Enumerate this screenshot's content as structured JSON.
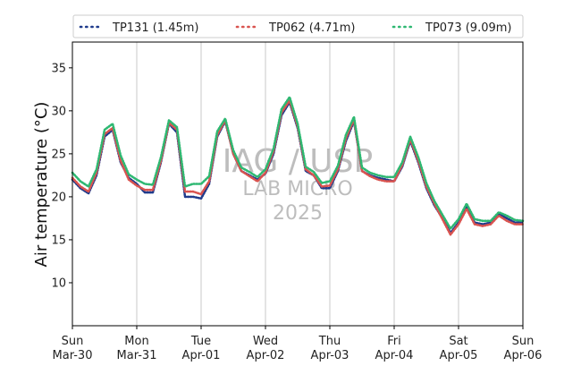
{
  "chart_data": {
    "type": "line",
    "xlabel": "",
    "ylabel": "Air temperature (°C)",
    "ylim": [
      5,
      38
    ],
    "yticks": [
      10,
      15,
      20,
      25,
      30,
      35
    ],
    "xlim": [
      "2025-03-30",
      "2025-04-06"
    ],
    "xticks": [
      {
        "date": "2025-03-30",
        "day": "Sun",
        "label": "Mar-30"
      },
      {
        "date": "2025-03-31",
        "day": "Mon",
        "label": "Mar-31"
      },
      {
        "date": "2025-04-01",
        "day": "Tue",
        "label": "Apr-01"
      },
      {
        "date": "2025-04-02",
        "day": "Wed",
        "label": "Apr-02"
      },
      {
        "date": "2025-04-03",
        "day": "Thu",
        "label": "Apr-03"
      },
      {
        "date": "2025-04-04",
        "day": "Fri",
        "label": "Apr-04"
      },
      {
        "date": "2025-04-05",
        "day": "Sat",
        "label": "Apr-05"
      },
      {
        "date": "2025-04-06",
        "day": "Sun",
        "label": "Apr-06"
      }
    ],
    "grid": "vertical",
    "legend_position": "top",
    "watermark": [
      "IAG / USP",
      "LAB MICRO",
      "2025"
    ],
    "x": [
      "2025-03-30 00:00",
      "2025-03-30 03:00",
      "2025-03-30 06:00",
      "2025-03-30 09:00",
      "2025-03-30 12:00",
      "2025-03-30 15:00",
      "2025-03-30 18:00",
      "2025-03-30 21:00",
      "2025-03-31 00:00",
      "2025-03-31 03:00",
      "2025-03-31 06:00",
      "2025-03-31 09:00",
      "2025-03-31 12:00",
      "2025-03-31 15:00",
      "2025-03-31 18:00",
      "2025-03-31 21:00",
      "2025-04-01 00:00",
      "2025-04-01 03:00",
      "2025-04-01 06:00",
      "2025-04-01 09:00",
      "2025-04-01 12:00",
      "2025-04-01 15:00",
      "2025-04-01 18:00",
      "2025-04-01 21:00",
      "2025-04-02 00:00",
      "2025-04-02 03:00",
      "2025-04-02 06:00",
      "2025-04-02 09:00",
      "2025-04-02 12:00",
      "2025-04-02 15:00",
      "2025-04-02 18:00",
      "2025-04-02 21:00",
      "2025-04-03 00:00",
      "2025-04-03 03:00",
      "2025-04-03 06:00",
      "2025-04-03 09:00",
      "2025-04-03 12:00",
      "2025-04-03 15:00",
      "2025-04-03 18:00",
      "2025-04-03 21:00",
      "2025-04-04 00:00",
      "2025-04-04 03:00",
      "2025-04-04 06:00",
      "2025-04-04 09:00",
      "2025-04-04 12:00",
      "2025-04-04 15:00",
      "2025-04-04 18:00",
      "2025-04-04 21:00",
      "2025-04-05 00:00",
      "2025-04-05 03:00",
      "2025-04-05 06:00",
      "2025-04-05 09:00",
      "2025-04-05 12:00",
      "2025-04-05 15:00",
      "2025-04-05 18:00",
      "2025-04-05 21:00",
      "2025-04-06 00:00"
    ],
    "series": [
      {
        "name": "TP131 (1.45m)",
        "color": "#1f3b8c",
        "values": [
          22.0,
          21.0,
          20.4,
          22.5,
          27.0,
          27.8,
          24.0,
          22.2,
          21.5,
          20.5,
          20.5,
          24.0,
          28.5,
          27.5,
          20.0,
          20.0,
          19.8,
          21.5,
          27.0,
          28.8,
          25.0,
          23.0,
          22.5,
          22.0,
          22.7,
          25.0,
          29.5,
          31.0,
          28.0,
          23.0,
          22.5,
          21.0,
          21.0,
          23.0,
          26.5,
          28.8,
          23.0,
          22.5,
          22.2,
          22.0,
          21.8,
          23.5,
          26.5,
          24.0,
          21.0,
          19.0,
          17.5,
          15.8,
          17.0,
          18.8,
          17.0,
          16.8,
          17.0,
          18.0,
          17.5,
          17.0,
          17.0
        ]
      },
      {
        "name": "TP062 (4.71m)",
        "color": "#d9534f",
        "values": [
          22.2,
          21.2,
          20.6,
          22.8,
          27.3,
          28.0,
          24.2,
          22.0,
          21.3,
          20.8,
          20.8,
          24.2,
          28.6,
          27.8,
          20.6,
          20.6,
          20.3,
          21.8,
          27.2,
          28.9,
          25.0,
          23.0,
          22.4,
          21.8,
          22.8,
          25.3,
          29.8,
          31.2,
          28.2,
          23.2,
          22.5,
          21.2,
          21.3,
          23.2,
          26.8,
          29.0,
          23.0,
          22.4,
          22.0,
          21.8,
          21.8,
          23.7,
          26.7,
          24.2,
          21.2,
          19.2,
          17.4,
          15.6,
          16.8,
          18.6,
          16.8,
          16.6,
          16.8,
          17.8,
          17.2,
          16.8,
          16.8
        ]
      },
      {
        "name": "TP073 (9.09m)",
        "color": "#2eb872",
        "values": [
          22.8,
          21.8,
          21.2,
          23.2,
          27.8,
          28.5,
          24.8,
          22.6,
          22.0,
          21.5,
          21.4,
          24.6,
          28.9,
          28.1,
          21.2,
          21.5,
          21.5,
          22.4,
          27.6,
          29.1,
          25.4,
          23.4,
          22.9,
          22.3,
          23.2,
          25.6,
          30.2,
          31.6,
          28.5,
          23.5,
          22.9,
          21.6,
          21.8,
          23.6,
          27.2,
          29.3,
          23.4,
          22.8,
          22.5,
          22.3,
          22.3,
          24.0,
          27.0,
          24.6,
          21.6,
          19.5,
          17.9,
          16.3,
          17.4,
          19.2,
          17.4,
          17.2,
          17.2,
          18.2,
          17.8,
          17.3,
          17.2
        ]
      }
    ]
  }
}
